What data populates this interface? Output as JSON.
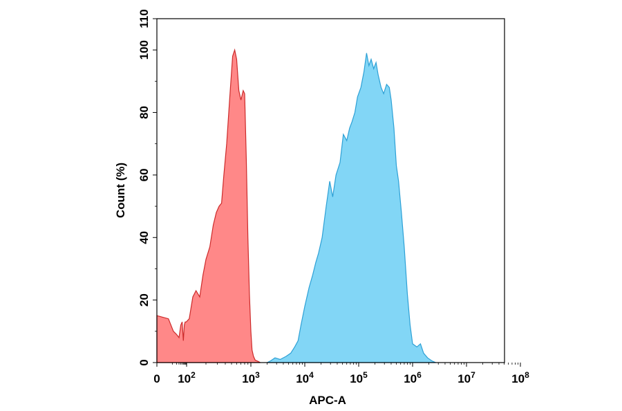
{
  "chart_data": {
    "type": "area",
    "xlabel": "APC-A",
    "ylabel": "Count (%)",
    "x_scale": "biexponential-log",
    "xlim": [
      0,
      100000000
    ],
    "ylim": [
      0,
      110
    ],
    "x_ticks": [
      {
        "value": 0,
        "base": "0",
        "exp": ""
      },
      {
        "value": 100,
        "base": "10",
        "exp": "2"
      },
      {
        "value": 1000,
        "base": "10",
        "exp": "3"
      },
      {
        "value": 10000,
        "base": "10",
        "exp": "4"
      },
      {
        "value": 100000,
        "base": "10",
        "exp": "5"
      },
      {
        "value": 1000000,
        "base": "10",
        "exp": "6"
      },
      {
        "value": 10000000,
        "base": "10",
        "exp": "7"
      },
      {
        "value": 100000000,
        "base": "10",
        "exp": "8"
      }
    ],
    "y_ticks": [
      0,
      20,
      40,
      60,
      80,
      100,
      110
    ],
    "grid": false,
    "legend": "none",
    "series": [
      {
        "color": "#ff7b7b",
        "stroke": "#cc2a2a",
        "points": [
          [
            0,
            15
          ],
          [
            5,
            14
          ],
          [
            12,
            10
          ],
          [
            20,
            9
          ],
          [
            30,
            8
          ],
          [
            40,
            12
          ],
          [
            50,
            13
          ],
          [
            60,
            7
          ],
          [
            70,
            12
          ],
          [
            80,
            13
          ],
          [
            95,
            13
          ],
          [
            110,
            14
          ],
          [
            125,
            21
          ],
          [
            140,
            23
          ],
          [
            160,
            21
          ],
          [
            180,
            28
          ],
          [
            200,
            33
          ],
          [
            230,
            37
          ],
          [
            260,
            44
          ],
          [
            290,
            48
          ],
          [
            320,
            50
          ],
          [
            350,
            51
          ],
          [
            380,
            60
          ],
          [
            420,
            70
          ],
          [
            470,
            85
          ],
          [
            520,
            98
          ],
          [
            560,
            100
          ],
          [
            600,
            97
          ],
          [
            650,
            87
          ],
          [
            700,
            84
          ],
          [
            760,
            87
          ],
          [
            800,
            86
          ],
          [
            850,
            65
          ],
          [
            900,
            40
          ],
          [
            950,
            22
          ],
          [
            1000,
            10
          ],
          [
            1050,
            4
          ],
          [
            1120,
            2
          ],
          [
            1200,
            0.8
          ],
          [
            1350,
            0.4
          ],
          [
            1500,
            0
          ]
        ]
      },
      {
        "color": "#74d2f5",
        "stroke": "#2da0d5",
        "points": [
          [
            2000,
            0
          ],
          [
            2300,
            0.5
          ],
          [
            2800,
            1.5
          ],
          [
            3500,
            1
          ],
          [
            4500,
            2
          ],
          [
            5500,
            3
          ],
          [
            6500,
            5
          ],
          [
            7500,
            7
          ],
          [
            8500,
            12
          ],
          [
            10000,
            18
          ],
          [
            12000,
            24
          ],
          [
            14000,
            28
          ],
          [
            16000,
            32
          ],
          [
            18000,
            35
          ],
          [
            21000,
            40
          ],
          [
            25000,
            50
          ],
          [
            29000,
            58
          ],
          [
            33000,
            53
          ],
          [
            38000,
            60
          ],
          [
            45000,
            64
          ],
          [
            52000,
            73
          ],
          [
            60000,
            71
          ],
          [
            68000,
            75
          ],
          [
            75000,
            77
          ],
          [
            85000,
            80
          ],
          [
            95000,
            85
          ],
          [
            110000,
            88
          ],
          [
            125000,
            93
          ],
          [
            140000,
            99
          ],
          [
            155000,
            95
          ],
          [
            170000,
            97
          ],
          [
            190000,
            94
          ],
          [
            210000,
            96
          ],
          [
            230000,
            92
          ],
          [
            260000,
            88
          ],
          [
            290000,
            86
          ],
          [
            330000,
            89
          ],
          [
            370000,
            88
          ],
          [
            400000,
            84
          ],
          [
            450000,
            75
          ],
          [
            500000,
            63
          ],
          [
            550000,
            58
          ],
          [
            620000,
            48
          ],
          [
            700000,
            37
          ],
          [
            800000,
            22
          ],
          [
            900000,
            12
          ],
          [
            1000000,
            6
          ],
          [
            1200000,
            5
          ],
          [
            1400000,
            6
          ],
          [
            1600000,
            3
          ],
          [
            1900000,
            1.5
          ],
          [
            2300000,
            0.5
          ],
          [
            2700000,
            0
          ]
        ]
      }
    ]
  }
}
